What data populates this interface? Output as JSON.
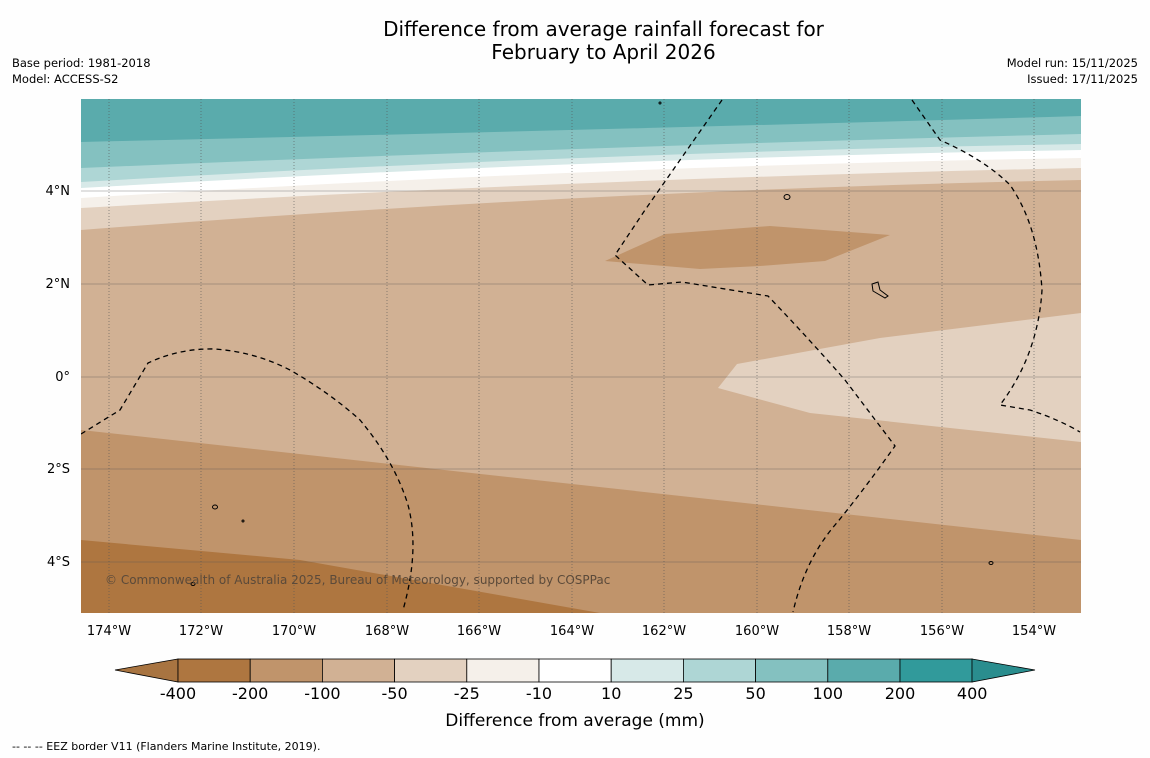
{
  "title": {
    "line1": "Difference from average rainfall forecast for",
    "line2": "February to April 2026"
  },
  "meta_left": {
    "base_period": "Base period: 1981-2018",
    "model": "Model: ACCESS-S2"
  },
  "meta_right": {
    "model_run": "Model run: 15/11/2025",
    "issued": "Issued: 17/11/2025"
  },
  "map": {
    "lat_labels": [
      "4°N",
      "2°N",
      "0°",
      "2°S",
      "4°S"
    ],
    "lon_labels": [
      "174°W",
      "172°W",
      "170°W",
      "168°W",
      "166°W",
      "164°W",
      "162°W",
      "160°W",
      "158°W",
      "156°W",
      "154°W"
    ],
    "copyright": "© Commonwealth of Australia 2025, Bureau of Meteorology, supported by COSPPac"
  },
  "legend": {
    "tick_labels": [
      "-400",
      "-200",
      "-100",
      "-50",
      "-25",
      "-10",
      "10",
      "25",
      "50",
      "100",
      "200",
      "400"
    ],
    "colors": [
      "#a87441",
      "#ae7640",
      "#c0946b",
      "#d1b194",
      "#e3d1c0",
      "#f5f0ea",
      "#ffffff",
      "#d7e9e8",
      "#aed6d5",
      "#84c1c0",
      "#5aabac",
      "#319a9b",
      "#2a8d8e"
    ],
    "label": "Difference from average (mm)"
  },
  "footer": "--  --  -- EEZ border V11 (Flanders Marine Institute, 2019)."
}
